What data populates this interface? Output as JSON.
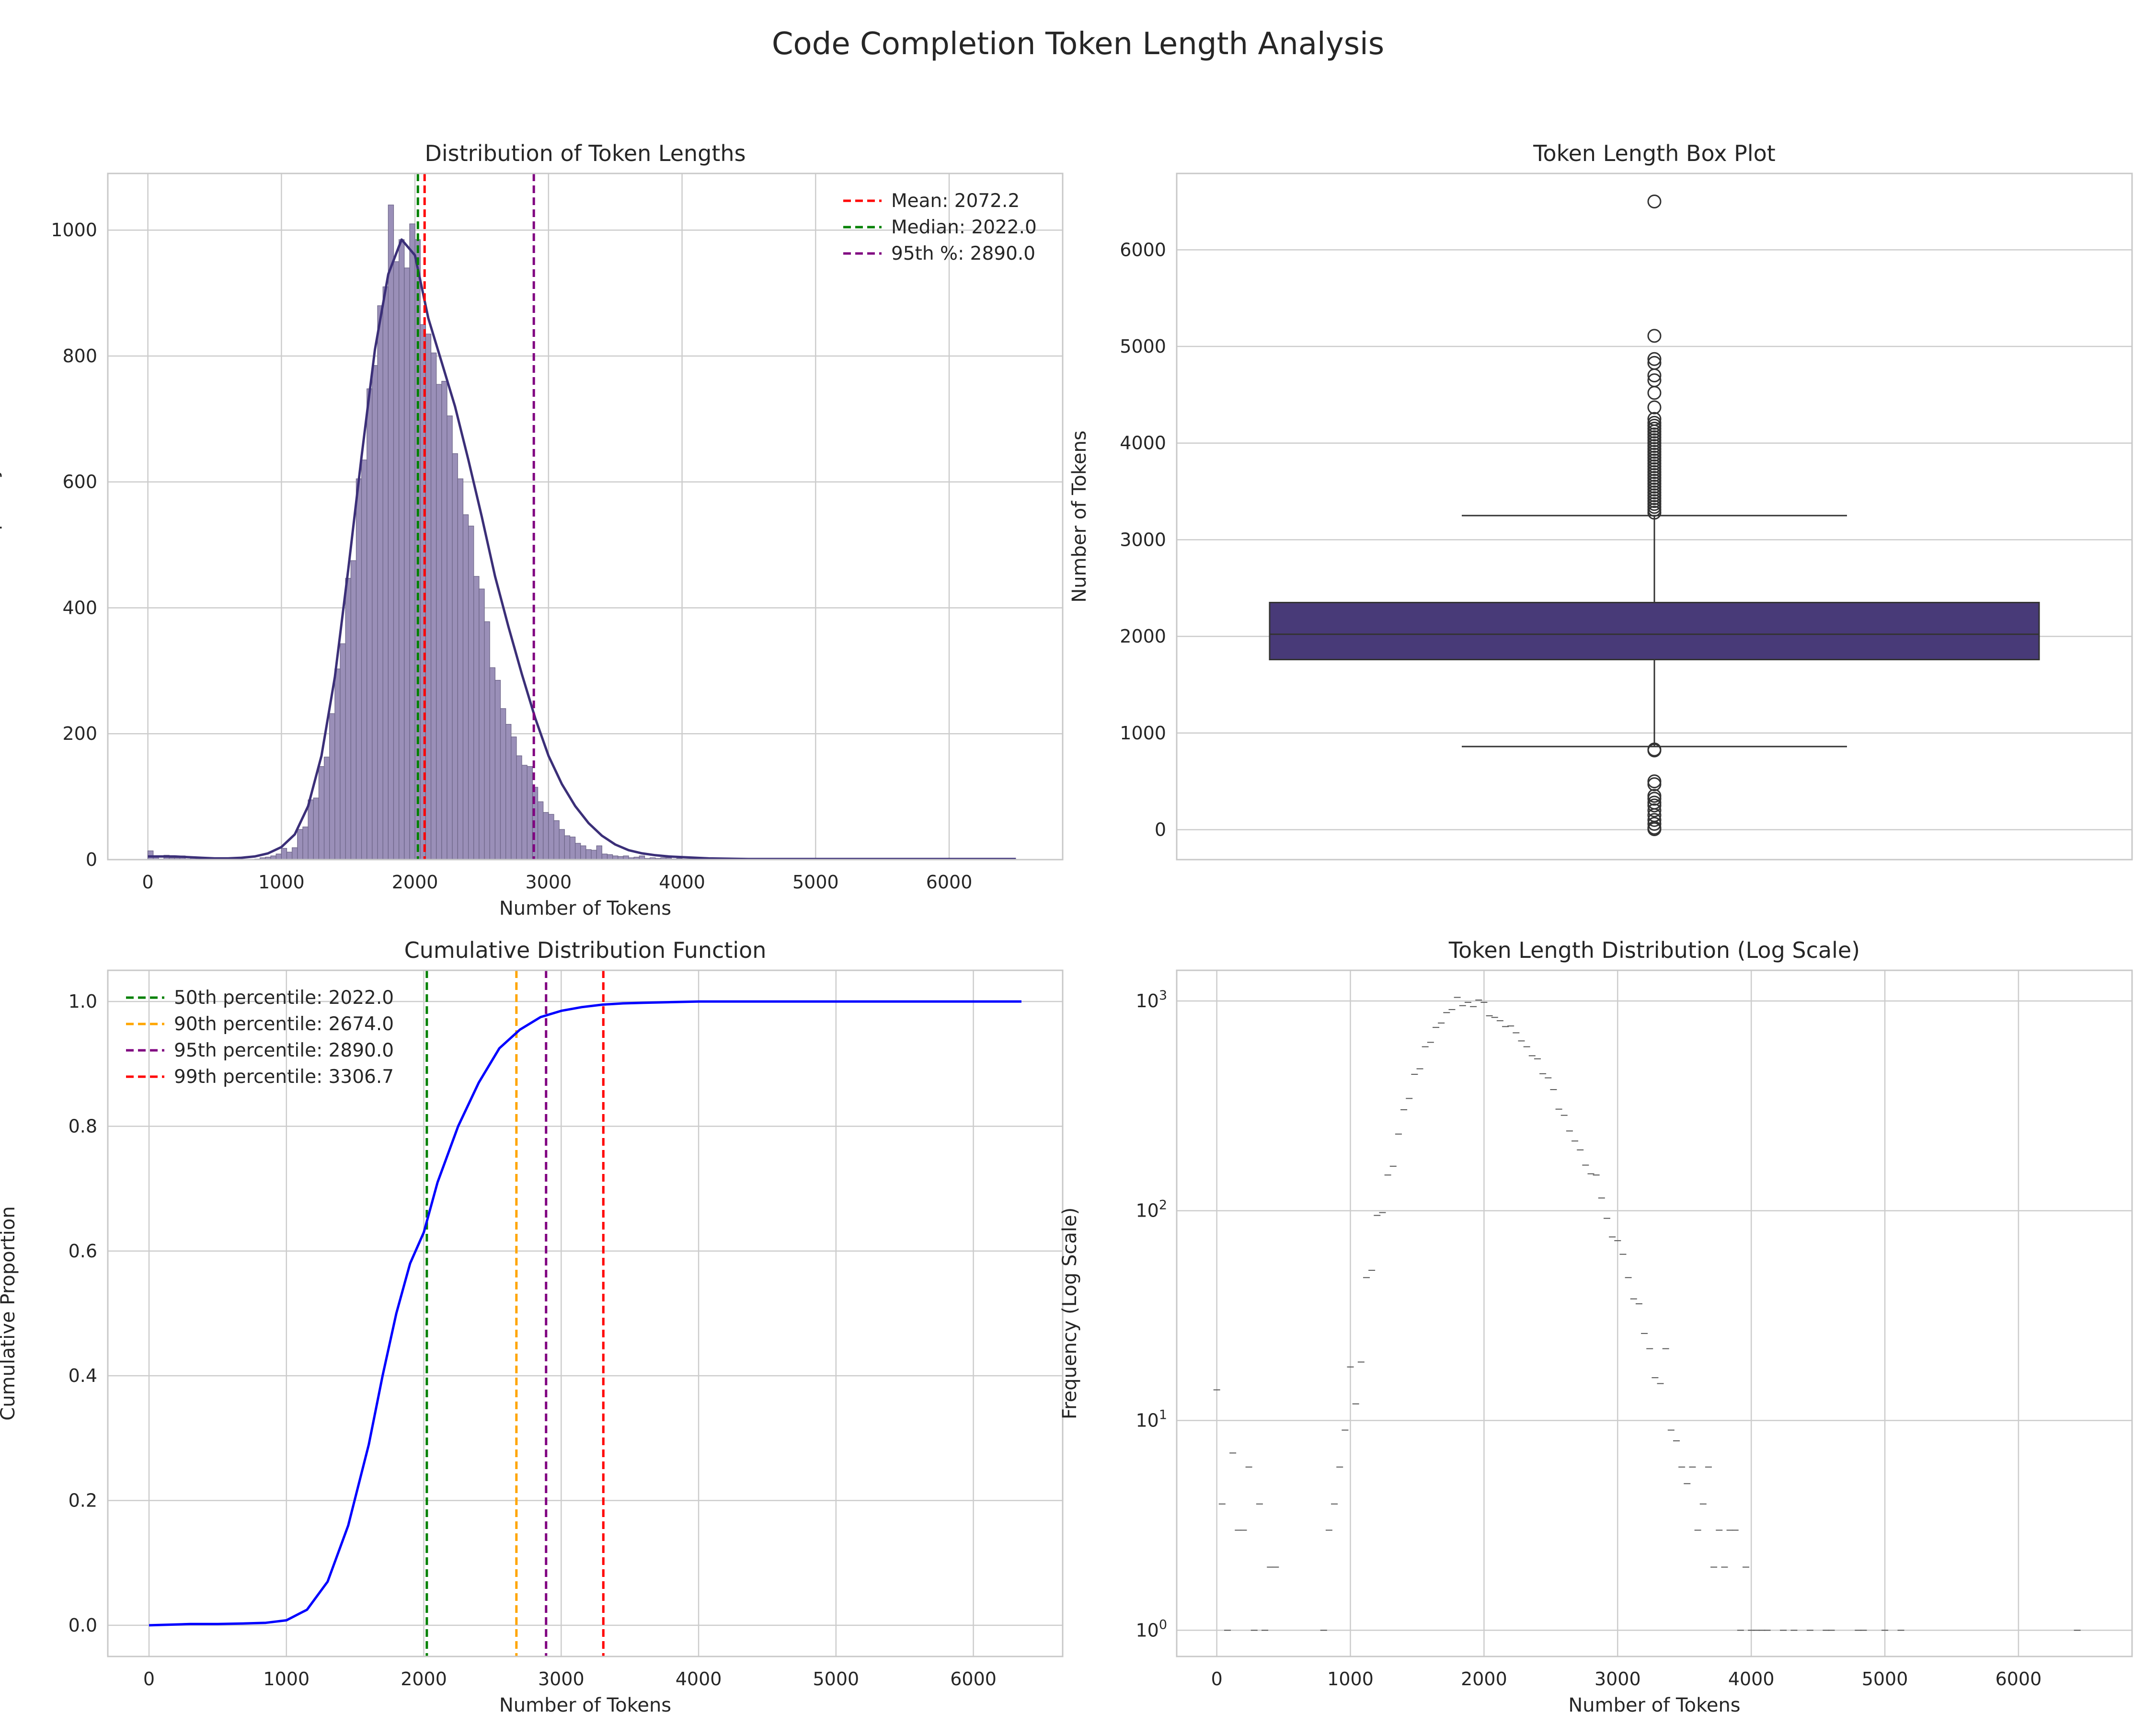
{
  "figure": {
    "title": "Code Completion Token Length Analysis"
  },
  "colors": {
    "hist_fill": "#9a8fb8",
    "hist_edge": "#6b6386",
    "kde": "#3b2f78",
    "box_fill": "#483a78",
    "cdf_line": "#0000ff",
    "grid": "#cccccc",
    "mean": "#ff0000",
    "median": "#008000",
    "p90": "#ffa500",
    "p95": "#800080",
    "p99": "#ff0000"
  },
  "chart_data": [
    {
      "type": "bar",
      "title": "Distribution of Token Lengths",
      "xlabel": "Number of Tokens",
      "ylabel": "Frequency",
      "xlim": [
        -300,
        6850
      ],
      "ylim": [
        0,
        1090
      ],
      "xticks": [
        0,
        1000,
        2000,
        3000,
        4000,
        5000,
        6000
      ],
      "yticks": [
        0,
        200,
        400,
        600,
        800,
        1000
      ],
      "bin_width": 40,
      "bins_x": [
        0,
        40,
        80,
        120,
        160,
        200,
        240,
        280,
        320,
        360,
        400,
        440,
        800,
        840,
        880,
        920,
        960,
        1000,
        1040,
        1080,
        1120,
        1160,
        1200,
        1240,
        1280,
        1320,
        1360,
        1400,
        1440,
        1480,
        1520,
        1560,
        1600,
        1640,
        1680,
        1720,
        1760,
        1800,
        1840,
        1880,
        1920,
        1960,
        2000,
        2040,
        2080,
        2120,
        2160,
        2200,
        2240,
        2280,
        2320,
        2360,
        2400,
        2440,
        2480,
        2520,
        2560,
        2600,
        2640,
        2680,
        2720,
        2760,
        2800,
        2840,
        2880,
        2920,
        2960,
        3000,
        3040,
        3080,
        3120,
        3160,
        3200,
        3240,
        3280,
        3320,
        3360,
        3400,
        3440,
        3480,
        3520,
        3560,
        3600,
        3640,
        3680,
        3720,
        3760,
        3800,
        3840,
        3880,
        3920,
        3960,
        4000,
        4040,
        4080,
        4120
      ],
      "bins_y": [
        14,
        4,
        1,
        7,
        3,
        3,
        6,
        1,
        4,
        1,
        2,
        2,
        1,
        3,
        4,
        6,
        9,
        18,
        12,
        19,
        48,
        52,
        95,
        98,
        148,
        163,
        232,
        303,
        343,
        447,
        475,
        605,
        635,
        748,
        785,
        880,
        910,
        1040,
        950,
        985,
        940,
        1010,
        985,
        850,
        835,
        805,
        755,
        760,
        705,
        645,
        605,
        548,
        530,
        450,
        430,
        378,
        305,
        285,
        240,
        215,
        195,
        165,
        150,
        148,
        115,
        92,
        75,
        72,
        62,
        48,
        38,
        36,
        26,
        22,
        16,
        15,
        22,
        9,
        8,
        6,
        5,
        6,
        3,
        4,
        6,
        2,
        3,
        2,
        3,
        3,
        1,
        2,
        1,
        1,
        1,
        1
      ],
      "kde": {
        "x": [
          0,
          100,
          200,
          300,
          400,
          500,
          600,
          700,
          800,
          900,
          1000,
          1100,
          1200,
          1300,
          1400,
          1500,
          1600,
          1700,
          1800,
          1900,
          2000,
          2100,
          2200,
          2300,
          2400,
          2500,
          2600,
          2700,
          2800,
          2900,
          3000,
          3100,
          3200,
          3300,
          3400,
          3500,
          3600,
          3700,
          3800,
          3900,
          4000,
          4200,
          4500,
          5000,
          6000,
          6500
        ],
        "y": [
          5,
          5,
          5,
          4,
          3,
          2,
          2,
          3,
          5,
          10,
          20,
          40,
          85,
          165,
          290,
          460,
          640,
          810,
          930,
          985,
          960,
          860,
          790,
          720,
          635,
          545,
          450,
          370,
          295,
          225,
          165,
          120,
          85,
          58,
          38,
          24,
          15,
          10,
          7,
          5,
          4,
          2,
          1,
          1,
          1,
          1
        ]
      },
      "vlines": [
        {
          "x": 2072.2,
          "label": "Mean: 2072.2",
          "color": "#ff0000"
        },
        {
          "x": 2022.0,
          "label": "Median: 2022.0",
          "color": "#008000"
        },
        {
          "x": 2890.0,
          "label": "95th %: 2890.0",
          "color": "#800080"
        }
      ],
      "legend": "top-right"
    },
    {
      "type": "box",
      "title": "Token Length Box Plot",
      "ylabel": "Number of Tokens",
      "ylim": [
        -310,
        6790
      ],
      "yticks": [
        0,
        1000,
        2000,
        3000,
        4000,
        5000,
        6000
      ],
      "q1": 1760,
      "median": 2022,
      "q3": 2350,
      "whisker_low": 860,
      "whisker_high": 3250,
      "outliers": [
        6500,
        5110,
        4870,
        4830,
        4700,
        4650,
        4520,
        4370,
        4250,
        4210,
        4180,
        4150,
        4120,
        4090,
        4060,
        4030,
        4000,
        3970,
        3940,
        3910,
        3880,
        3850,
        3820,
        3790,
        3760,
        3730,
        3700,
        3670,
        3640,
        3610,
        3580,
        3550,
        3520,
        3490,
        3460,
        3430,
        3400,
        3370,
        3340,
        3310,
        3280,
        830,
        820,
        500,
        470,
        350,
        320,
        280,
        250,
        200,
        150,
        100,
        60,
        20,
        5
      ]
    },
    {
      "type": "line",
      "title": "Cumulative Distribution Function",
      "xlabel": "Number of Tokens",
      "ylabel": "Cumulative Proportion",
      "xlim": [
        -300,
        6650
      ],
      "ylim": [
        -0.05,
        1.05
      ],
      "xticks": [
        0,
        1000,
        2000,
        3000,
        4000,
        5000,
        6000
      ],
      "yticks": [
        0.0,
        0.2,
        0.4,
        0.6,
        0.8,
        1.0
      ],
      "ytick_labels": [
        "0.0",
        "0.2",
        "0.4",
        "0.6",
        "0.8",
        "1.0"
      ],
      "x": [
        0,
        150,
        300,
        500,
        700,
        850,
        1000,
        1150,
        1300,
        1450,
        1600,
        1700,
        1800,
        1900,
        2000,
        2100,
        2250,
        2400,
        2550,
        2700,
        2850,
        3000,
        3150,
        3300,
        3450,
        3600,
        3800,
        4000,
        4500,
        5000,
        5500,
        6000,
        6350
      ],
      "y": [
        0.0,
        0.001,
        0.002,
        0.002,
        0.003,
        0.004,
        0.008,
        0.025,
        0.07,
        0.16,
        0.29,
        0.4,
        0.5,
        0.58,
        0.63,
        0.71,
        0.8,
        0.87,
        0.925,
        0.955,
        0.975,
        0.985,
        0.991,
        0.995,
        0.997,
        0.998,
        0.999,
        1.0,
        1.0,
        1.0,
        1.0,
        1.0,
        1.0
      ],
      "vlines": [
        {
          "x": 2022.0,
          "label": "50th percentile: 2022.0",
          "color": "#008000"
        },
        {
          "x": 2674.0,
          "label": "90th percentile: 2674.0",
          "color": "#ffa500"
        },
        {
          "x": 2890.0,
          "label": "95th percentile: 2890.0",
          "color": "#800080"
        },
        {
          "x": 3306.7,
          "label": "99th percentile: 3306.7",
          "color": "#ff0000"
        }
      ],
      "legend": "top-left"
    },
    {
      "type": "scatter",
      "title": "Token Length Distribution (Log Scale)",
      "xlabel": "Number of Tokens",
      "ylabel": "Frequency (Log Scale)",
      "yscale": "log",
      "xlim": [
        -300,
        6850
      ],
      "ylim": [
        0.75,
        1400
      ],
      "xticks": [
        0,
        1000,
        2000,
        3000,
        4000,
        5000,
        6000
      ],
      "yticks": [
        1,
        10,
        100,
        1000
      ],
      "ytick_labels": [
        {
          "base": "10",
          "exp": "0"
        },
        {
          "base": "10",
          "exp": "1"
        },
        {
          "base": "10",
          "exp": "2"
        },
        {
          "base": "10",
          "exp": "3"
        }
      ],
      "x": [
        0,
        40,
        80,
        120,
        160,
        200,
        240,
        280,
        320,
        360,
        400,
        440,
        800,
        840,
        880,
        920,
        960,
        1000,
        1040,
        1080,
        1120,
        1160,
        1200,
        1240,
        1280,
        1320,
        1360,
        1400,
        1440,
        1480,
        1520,
        1560,
        1600,
        1640,
        1680,
        1720,
        1760,
        1800,
        1840,
        1880,
        1920,
        1960,
        2000,
        2040,
        2080,
        2120,
        2160,
        2200,
        2240,
        2280,
        2320,
        2360,
        2400,
        2440,
        2480,
        2520,
        2560,
        2600,
        2640,
        2680,
        2720,
        2760,
        2800,
        2840,
        2880,
        2920,
        2960,
        3000,
        3040,
        3080,
        3120,
        3160,
        3200,
        3240,
        3280,
        3320,
        3360,
        3400,
        3440,
        3480,
        3520,
        3560,
        3600,
        3640,
        3680,
        3720,
        3760,
        3800,
        3840,
        3880,
        3920,
        3960,
        4000,
        4040,
        4080,
        4120,
        4240,
        4320,
        4440,
        4560,
        4600,
        4800,
        4840,
        5000,
        5120,
        6440
      ],
      "y": [
        14,
        4,
        1,
        7,
        3,
        3,
        6,
        1,
        4,
        1,
        2,
        2,
        1,
        3,
        4,
        6,
        9,
        18,
        12,
        19,
        48,
        52,
        95,
        98,
        148,
        163,
        232,
        303,
        343,
        447,
        475,
        605,
        635,
        748,
        785,
        880,
        910,
        1040,
        950,
        985,
        940,
        1010,
        985,
        850,
        835,
        805,
        755,
        760,
        705,
        645,
        605,
        548,
        530,
        450,
        430,
        378,
        305,
        285,
        240,
        215,
        195,
        165,
        150,
        148,
        115,
        92,
        75,
        72,
        62,
        48,
        38,
        36,
        26,
        22,
        16,
        15,
        22,
        9,
        8,
        6,
        5,
        6,
        3,
        4,
        6,
        2,
        3,
        2,
        3,
        3,
        1,
        2,
        1,
        1,
        1,
        1,
        1,
        1,
        1,
        1,
        1,
        1,
        1,
        1,
        1,
        1
      ]
    }
  ]
}
